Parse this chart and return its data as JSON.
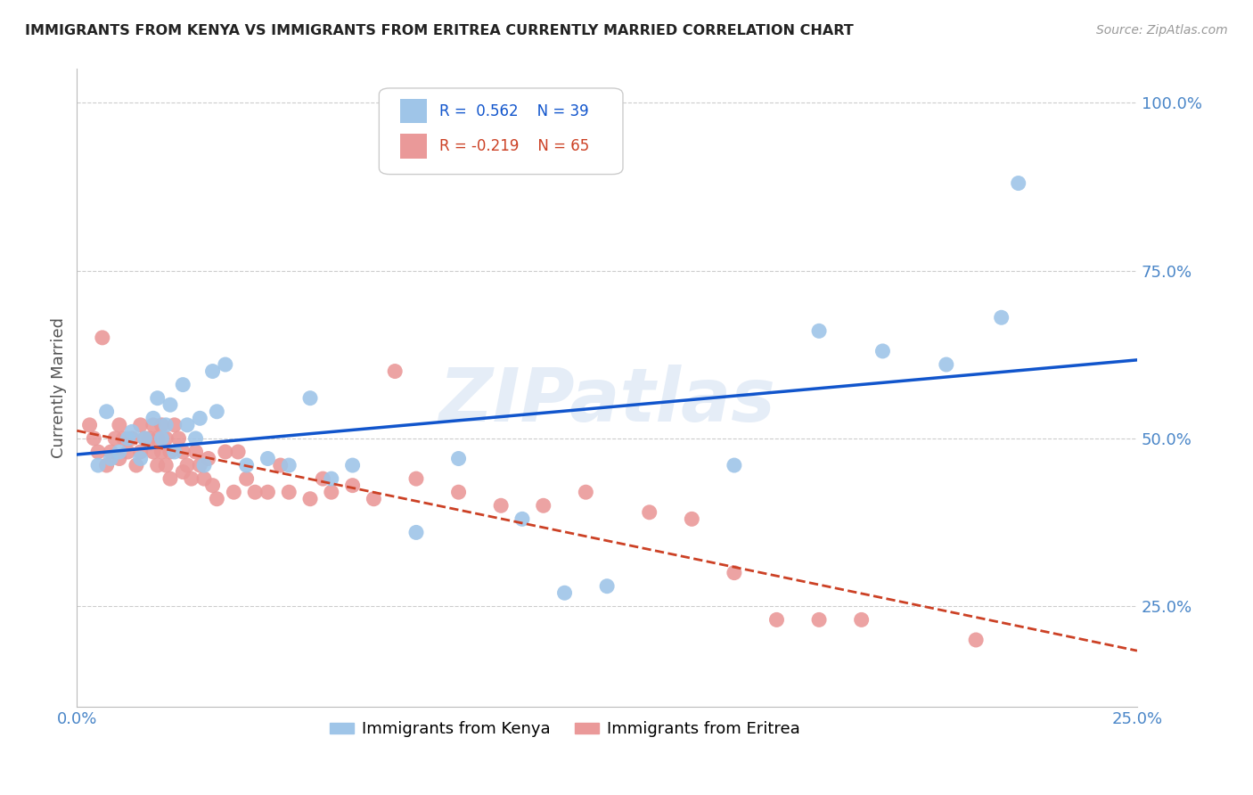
{
  "title": "IMMIGRANTS FROM KENYA VS IMMIGRANTS FROM ERITREA CURRENTLY MARRIED CORRELATION CHART",
  "source": "Source: ZipAtlas.com",
  "ylabel": "Currently Married",
  "ytick_labels": [
    "100.0%",
    "75.0%",
    "50.0%",
    "25.0%"
  ],
  "ytick_values": [
    1.0,
    0.75,
    0.5,
    0.25
  ],
  "xlim": [
    0.0,
    0.25
  ],
  "ylim": [
    0.1,
    1.05
  ],
  "kenya_R": 0.562,
  "kenya_N": 39,
  "eritrea_R": -0.219,
  "eritrea_N": 65,
  "kenya_color": "#9fc5e8",
  "eritrea_color": "#ea9999",
  "kenya_line_color": "#1155cc",
  "eritrea_line_color": "#cc4125",
  "watermark": "ZIPatlas",
  "kenya_x": [
    0.005,
    0.007,
    0.008,
    0.01,
    0.012,
    0.013,
    0.015,
    0.016,
    0.018,
    0.019,
    0.02,
    0.021,
    0.022,
    0.023,
    0.025,
    0.026,
    0.028,
    0.029,
    0.03,
    0.032,
    0.033,
    0.035,
    0.04,
    0.045,
    0.05,
    0.055,
    0.06,
    0.065,
    0.08,
    0.09,
    0.105,
    0.115,
    0.125,
    0.155,
    0.175,
    0.19,
    0.205,
    0.218,
    0.222
  ],
  "kenya_y": [
    0.46,
    0.54,
    0.47,
    0.48,
    0.5,
    0.51,
    0.47,
    0.5,
    0.53,
    0.56,
    0.5,
    0.52,
    0.55,
    0.48,
    0.58,
    0.52,
    0.5,
    0.53,
    0.46,
    0.6,
    0.54,
    0.61,
    0.46,
    0.47,
    0.46,
    0.56,
    0.44,
    0.46,
    0.36,
    0.47,
    0.38,
    0.27,
    0.28,
    0.46,
    0.66,
    0.63,
    0.61,
    0.68,
    0.88
  ],
  "eritrea_x": [
    0.003,
    0.004,
    0.005,
    0.006,
    0.007,
    0.008,
    0.009,
    0.01,
    0.01,
    0.011,
    0.012,
    0.013,
    0.014,
    0.015,
    0.015,
    0.016,
    0.017,
    0.018,
    0.018,
    0.019,
    0.019,
    0.02,
    0.02,
    0.021,
    0.021,
    0.022,
    0.022,
    0.023,
    0.024,
    0.025,
    0.025,
    0.026,
    0.027,
    0.028,
    0.029,
    0.03,
    0.031,
    0.032,
    0.033,
    0.035,
    0.037,
    0.038,
    0.04,
    0.042,
    0.045,
    0.048,
    0.05,
    0.055,
    0.058,
    0.06,
    0.065,
    0.07,
    0.075,
    0.08,
    0.09,
    0.1,
    0.11,
    0.12,
    0.135,
    0.145,
    0.155,
    0.165,
    0.175,
    0.185,
    0.212
  ],
  "eritrea_y": [
    0.52,
    0.5,
    0.48,
    0.65,
    0.46,
    0.48,
    0.5,
    0.47,
    0.52,
    0.5,
    0.48,
    0.5,
    0.46,
    0.52,
    0.48,
    0.5,
    0.5,
    0.48,
    0.52,
    0.46,
    0.5,
    0.48,
    0.52,
    0.46,
    0.5,
    0.48,
    0.44,
    0.52,
    0.5,
    0.48,
    0.45,
    0.46,
    0.44,
    0.48,
    0.46,
    0.44,
    0.47,
    0.43,
    0.41,
    0.48,
    0.42,
    0.48,
    0.44,
    0.42,
    0.42,
    0.46,
    0.42,
    0.41,
    0.44,
    0.42,
    0.43,
    0.41,
    0.6,
    0.44,
    0.42,
    0.4,
    0.4,
    0.42,
    0.39,
    0.38,
    0.3,
    0.23,
    0.23,
    0.23,
    0.2
  ]
}
